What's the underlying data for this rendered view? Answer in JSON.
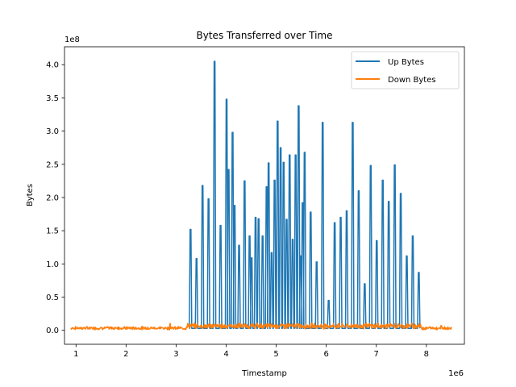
{
  "chart_data": {
    "type": "line",
    "title": "Bytes Transferred over Time",
    "xlabel": "Timestamp",
    "ylabel": "Bytes",
    "x_offset_label": "1e6",
    "y_offset_label": "1e8",
    "xlim": [
      0.77,
      8.76
    ],
    "ylim": [
      -0.21,
      4.27
    ],
    "xticks": [
      1,
      2,
      3,
      4,
      5,
      6,
      7,
      8
    ],
    "xtick_labels": [
      "1",
      "2",
      "3",
      "4",
      "5",
      "6",
      "7",
      "8"
    ],
    "yticks": [
      0.0,
      0.5,
      1.0,
      1.5,
      2.0,
      2.5,
      3.0,
      3.5,
      4.0
    ],
    "ytick_labels": [
      "0.0",
      "0.5",
      "1.0",
      "1.5",
      "2.0",
      "2.5",
      "3.0",
      "3.5",
      "4.0"
    ],
    "grid": false,
    "legend_position": "top-right",
    "series": [
      {
        "name": "Up Bytes",
        "color": "#1f77b4",
        "baseline": 0.03,
        "spikes": [
          [
            3.28,
            1.52
          ],
          [
            3.4,
            1.08
          ],
          [
            3.52,
            2.18
          ],
          [
            3.64,
            1.98
          ],
          [
            3.76,
            4.05
          ],
          [
            3.88,
            1.58
          ],
          [
            4.0,
            3.48
          ],
          [
            4.04,
            2.42
          ],
          [
            4.12,
            2.98
          ],
          [
            4.16,
            1.88
          ],
          [
            4.25,
            1.28
          ],
          [
            4.36,
            2.25
          ],
          [
            4.46,
            1.42
          ],
          [
            4.5,
            1.09
          ],
          [
            4.58,
            1.7
          ],
          [
            4.64,
            1.68
          ],
          [
            4.72,
            1.42
          ],
          [
            4.8,
            2.16
          ],
          [
            4.84,
            2.52
          ],
          [
            4.9,
            1.17
          ],
          [
            4.96,
            2.26
          ],
          [
            5.02,
            3.15
          ],
          [
            5.08,
            2.75
          ],
          [
            5.14,
            2.53
          ],
          [
            5.2,
            1.67
          ],
          [
            5.26,
            2.64
          ],
          [
            5.32,
            1.37
          ],
          [
            5.38,
            2.64
          ],
          [
            5.44,
            3.38
          ],
          [
            5.48,
            1.12
          ],
          [
            5.52,
            1.92
          ],
          [
            5.56,
            2.68
          ],
          [
            5.68,
            1.78
          ],
          [
            5.8,
            1.03
          ],
          [
            5.92,
            3.13
          ],
          [
            6.04,
            0.45
          ],
          [
            6.16,
            1.62
          ],
          [
            6.28,
            1.7
          ],
          [
            6.4,
            1.8
          ],
          [
            6.52,
            3.13
          ],
          [
            6.64,
            2.1
          ],
          [
            6.76,
            0.7
          ],
          [
            6.88,
            2.48
          ],
          [
            7.0,
            1.35
          ],
          [
            7.12,
            2.26
          ],
          [
            7.24,
            1.94
          ],
          [
            7.36,
            2.49
          ],
          [
            7.48,
            2.06
          ],
          [
            7.6,
            1.12
          ],
          [
            7.72,
            1.42
          ],
          [
            7.84,
            0.87
          ]
        ]
      },
      {
        "name": "Down Bytes",
        "color": "#ff7f0e",
        "x_start": 0.9,
        "x_end": 8.5,
        "noise_level": 0.035,
        "mid_level": 0.06,
        "peaks": [
          [
            1.85,
            0.05
          ],
          [
            2.88,
            0.1
          ],
          [
            8.3,
            0.07
          ]
        ]
      }
    ]
  }
}
